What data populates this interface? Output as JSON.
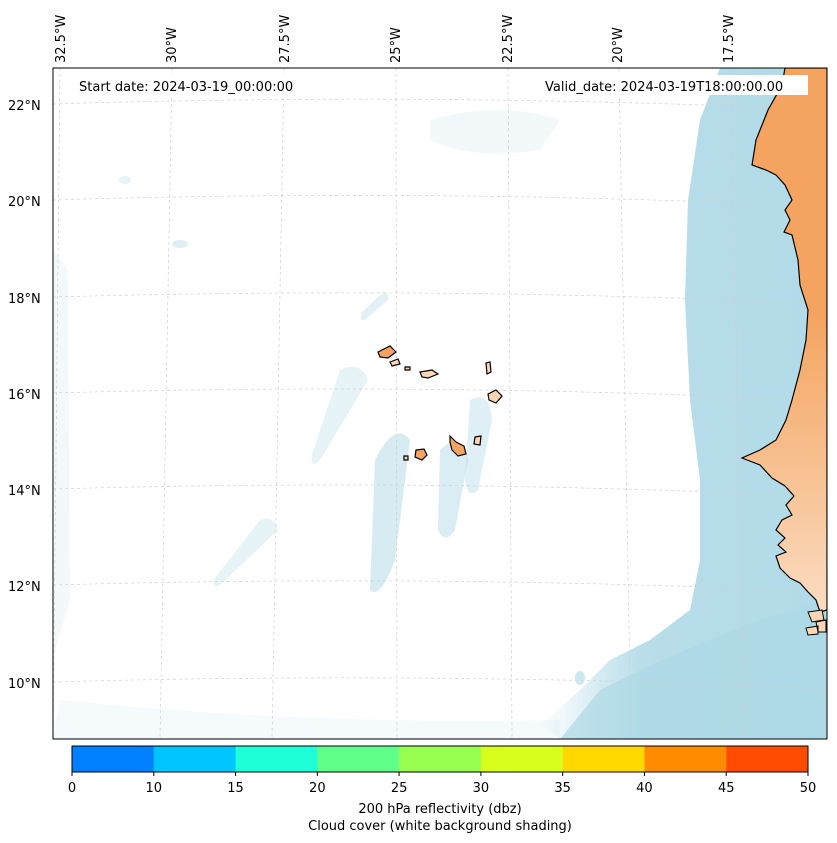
{
  "annotations": {
    "start_date": "Start date: 2024-03-19_00:00:00",
    "valid_date": "Valid_date: 2024-03-19T18:00:00.00"
  },
  "lon_labels": [
    "32.5°W",
    "30°W",
    "27.5°W",
    "25°W",
    "22.5°W",
    "20°W",
    "17.5°W"
  ],
  "lat_labels": [
    "22°N",
    "20°N",
    "18°N",
    "16°N",
    "14°N",
    "12°N",
    "10°N"
  ],
  "colorbar": {
    "ticks": [
      "0",
      "10",
      "15",
      "20",
      "25",
      "30",
      "35",
      "40",
      "45",
      "50"
    ],
    "colors": [
      "#0080ff",
      "#00c4ff",
      "#1effd8",
      "#60ff8a",
      "#98ff50",
      "#d8ff1e",
      "#ffd800",
      "#ff8c00",
      "#ff4c00"
    ],
    "label": "200 hPa reflectivity (dbz)",
    "sublabel": "Cloud cover (white background shading)"
  },
  "colors": {
    "land": "#f4a460",
    "land_light": "#fbd5b4",
    "cloud": "#add8e6",
    "coast": "#000000",
    "grid": "#d0d0d0"
  }
}
